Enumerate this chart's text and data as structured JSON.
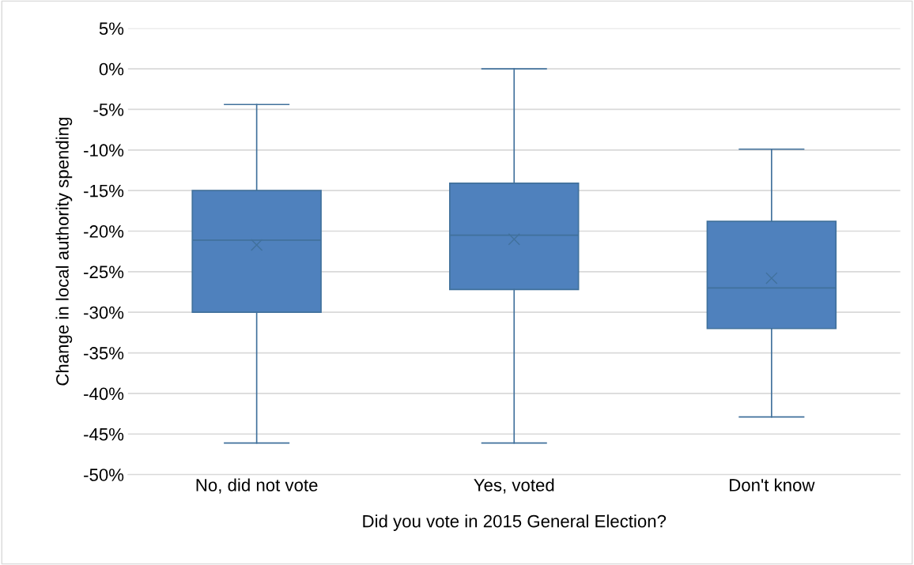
{
  "chart_data": {
    "type": "box",
    "xlabel": "Did you vote in 2015 General Election?",
    "ylabel": "Change in local authority spending",
    "categories": [
      "No, did not vote",
      "Yes, voted",
      "Don't know"
    ],
    "boxes": [
      {
        "low": -46.1,
        "q1": -30.0,
        "median": -21.1,
        "q3": -15.0,
        "high": -4.4,
        "mean": -21.7
      },
      {
        "low": -46.1,
        "q1": -27.2,
        "median": -20.5,
        "q3": -14.1,
        "high": 0.0,
        "mean": -21.0
      },
      {
        "low": -42.9,
        "q1": -32.0,
        "median": -27.0,
        "q3": -18.8,
        "high": -9.9,
        "mean": -25.8
      }
    ],
    "color": "#4f81bd",
    "ylim": [
      -50,
      5
    ],
    "yticks": [
      {
        "value": 5,
        "label": "5%"
      },
      {
        "value": 0,
        "label": "0%"
      },
      {
        "value": -5,
        "label": "-5%"
      },
      {
        "value": -10,
        "label": "-10%"
      },
      {
        "value": -15,
        "label": "-15%"
      },
      {
        "value": -20,
        "label": "-20%"
      },
      {
        "value": -25,
        "label": "-25%"
      },
      {
        "value": -30,
        "label": "-30%"
      },
      {
        "value": -35,
        "label": "-35%"
      },
      {
        "value": -40,
        "label": "-40%"
      },
      {
        "value": -45,
        "label": "-45%"
      },
      {
        "value": -50,
        "label": "-50%"
      }
    ],
    "grid": "y",
    "marker": "cross",
    "legend": false
  }
}
